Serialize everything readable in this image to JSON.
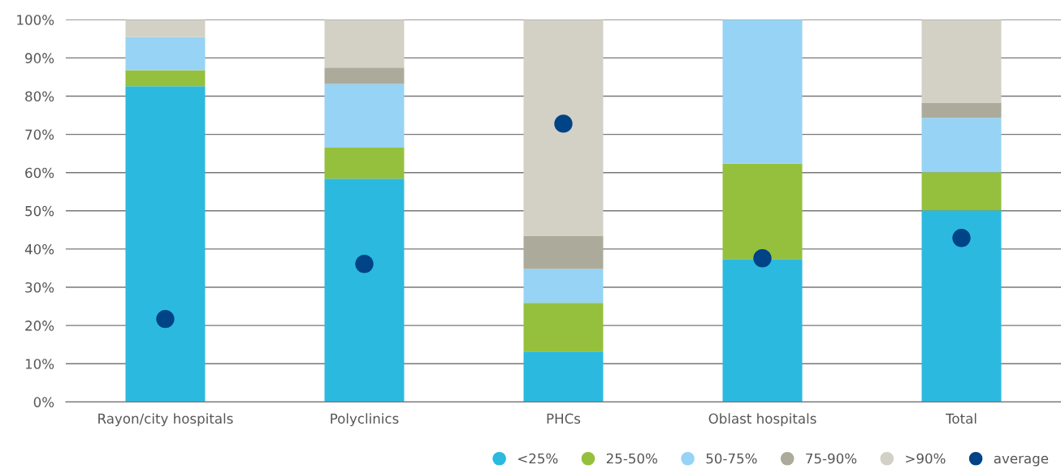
{
  "chart_data": {
    "type": "bar",
    "stacked": true,
    "categories": [
      "Rayon/city hospitals",
      "Polyclinics",
      "PHCs",
      "Oblast hospitals",
      "Total"
    ],
    "series": [
      {
        "name": "<25%",
        "color": "#2cb9df",
        "values": [
          82.6,
          58.4,
          13.2,
          37.4,
          50.1
        ]
      },
      {
        "name": "25-50%",
        "color": "#95c03d",
        "values": [
          4.2,
          8.1,
          12.7,
          25.0,
          10.0
        ]
      },
      {
        "name": "50-75%",
        "color": "#97d3f4",
        "values": [
          8.7,
          16.7,
          8.9,
          37.6,
          14.2
        ]
      },
      {
        "name": "75-90%",
        "color": "#acab9b",
        "values": [
          0,
          4.3,
          8.7,
          0,
          4.0
        ]
      },
      {
        "name": ">90%",
        "color": "#d3d1c5",
        "values": [
          4.5,
          12.5,
          56.5,
          0,
          21.7
        ]
      },
      {
        "name": "average",
        "color": "#004386",
        "type": "scatter",
        "marker": "circle",
        "x": [
          "Rayon/city hospitals",
          "Polyclinics",
          "PHCs",
          "Oblast hospitals",
          "Total"
        ],
        "values": [
          21.7,
          36.1,
          72.8,
          37.6,
          42.9
        ]
      }
    ],
    "ylim": [
      0,
      100
    ],
    "yticks": [
      {
        "value": 0,
        "label": "0%"
      },
      {
        "value": 10,
        "label": "10%"
      },
      {
        "value": 20,
        "label": "20%"
      },
      {
        "value": 30,
        "label": "30%"
      },
      {
        "value": 40,
        "label": "40%"
      },
      {
        "value": 50,
        "label": "50%"
      },
      {
        "value": 60,
        "label": "60%"
      },
      {
        "value": 70,
        "label": "70%"
      },
      {
        "value": 80,
        "label": "80%"
      },
      {
        "value": 90,
        "label": "90%"
      },
      {
        "value": 100,
        "label": "100%"
      }
    ],
    "grid": "y",
    "legend": "bottom right"
  }
}
